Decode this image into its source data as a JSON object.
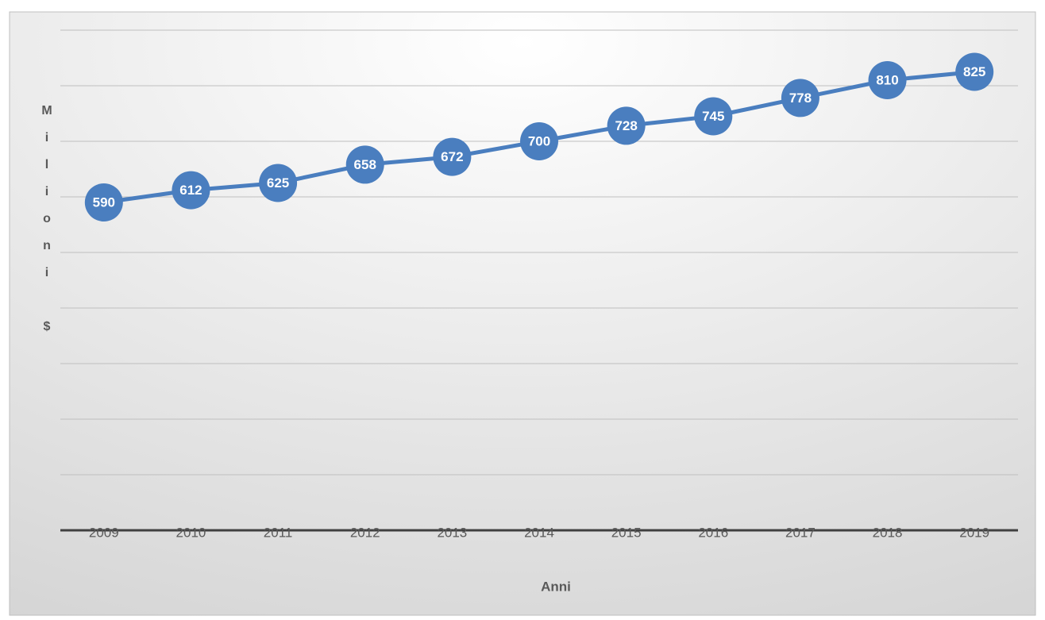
{
  "chart_data": {
    "type": "line",
    "y_label": "Milioni $",
    "x_label": "Anni",
    "categories": [
      "2009",
      "2010",
      "2011",
      "2012",
      "2013",
      "2014",
      "2015",
      "2016",
      "2017",
      "2018",
      "2019"
    ],
    "values": [
      590,
      612,
      625,
      658,
      672,
      700,
      728,
      745,
      778,
      810,
      825
    ],
    "color": "#4a7ebf",
    "ylim": [
      0,
      900
    ],
    "yticks": [
      0,
      100,
      200,
      300,
      400,
      500,
      600,
      700,
      800,
      900
    ],
    "grid": true
  }
}
